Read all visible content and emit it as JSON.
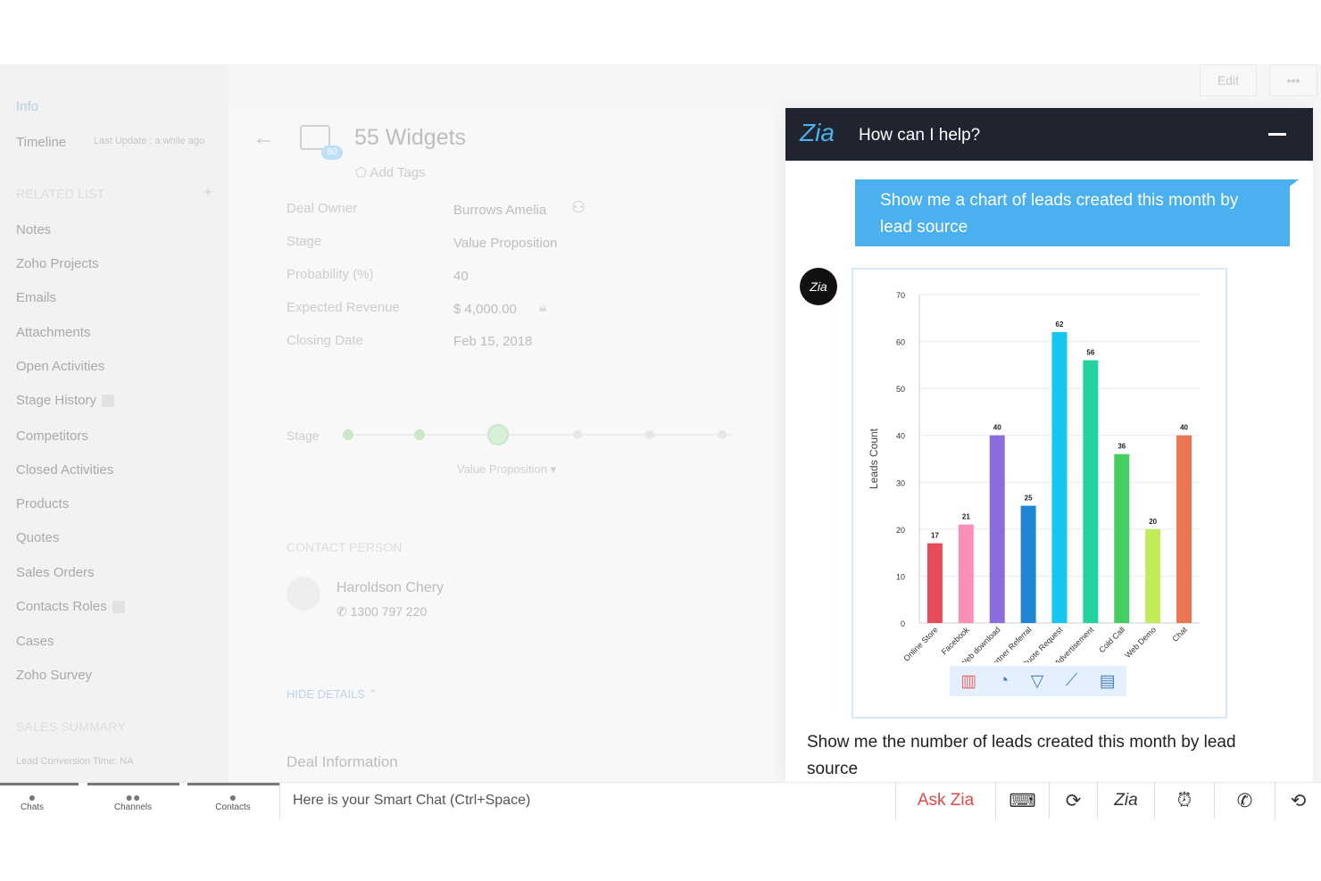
{
  "sidebar": {
    "info": "Info",
    "timeline": "Timeline",
    "last_update": "Last Update : a while ago",
    "related_list": "RELATED LIST",
    "items": [
      {
        "label": "Notes"
      },
      {
        "label": "Zoho Projects"
      },
      {
        "label": "Emails"
      },
      {
        "label": "Attachments"
      },
      {
        "label": "Open Activities"
      },
      {
        "label": "Stage History"
      },
      {
        "label": "Competitors"
      },
      {
        "label": "Closed Activities"
      },
      {
        "label": "Products"
      },
      {
        "label": "Quotes"
      },
      {
        "label": "Sales Orders"
      },
      {
        "label": "Contacts Roles"
      },
      {
        "label": "Cases"
      },
      {
        "label": "Zoho Survey"
      }
    ],
    "sales_summary": "SALES SUMMARY",
    "lead_conversion": "Lead Conversion Time: NA"
  },
  "record": {
    "title": "55 Widgets",
    "badge": "80",
    "add_tags": "Add Tags",
    "fields": [
      {
        "label": "Deal Owner",
        "value": "Burrows Amelia"
      },
      {
        "label": "Stage",
        "value": "Value Proposition"
      },
      {
        "label": "Probability (%)",
        "value": "40"
      },
      {
        "label": "Expected Revenue",
        "value": "$ 4,000.00"
      },
      {
        "label": "Closing Date",
        "value": "Feb 15, 2018"
      }
    ],
    "stage_label": "Stage",
    "stage_value": "Value Proposition",
    "contact_person": "CONTACT PERSON",
    "contact_name": "Haroldson Chery",
    "contact_phone": "1300 797 220",
    "hide_details": "HIDE DETAILS",
    "deal_information": "Deal Information"
  },
  "toolbar": {
    "edit": "Edit",
    "more": "•••"
  },
  "zia": {
    "logo": "Zia",
    "title": "How can I help?",
    "user_message": "Show me a chart of leads created this month by lead source",
    "avatar": "Zia",
    "input_text": "Show me the number of leads created this month by lead source"
  },
  "chart_data": {
    "type": "bar",
    "categories": [
      "Online Store",
      "Facebook",
      "Web download",
      "Partner Referral",
      "Quote Request",
      "Advertisement",
      "Cold Call",
      "Web Demo",
      "Chat"
    ],
    "values": [
      17,
      21,
      40,
      25,
      62,
      56,
      36,
      20,
      40
    ],
    "colors": [
      "#e84c5a",
      "#f98fb9",
      "#8c6bdd",
      "#1f86d8",
      "#16c6ee",
      "#24d2a0",
      "#47ce63",
      "#c2ea59",
      "#ea7654"
    ],
    "ylabel": "Leads Count",
    "ylim": [
      0,
      70
    ],
    "yticks": [
      0,
      10,
      20,
      30,
      40,
      50,
      60,
      70
    ],
    "grid": true
  },
  "bottom": {
    "tabs": [
      {
        "label": "Chats",
        "icon": "chat-icon"
      },
      {
        "label": "Channels",
        "icon": "channels-icon"
      },
      {
        "label": "Contacts",
        "icon": "contacts-icon"
      }
    ],
    "smart_chat": "Here is your Smart Chat (Ctrl+Space)",
    "ask_zia": "Ask Zia"
  }
}
